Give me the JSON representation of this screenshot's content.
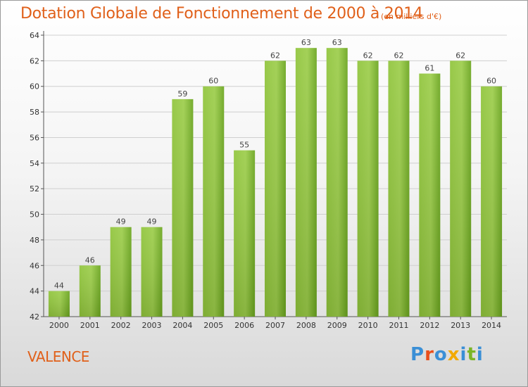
{
  "chart_data": {
    "type": "bar",
    "title": "Dotation Globale de Fonctionnement de 2000 à 2014",
    "subtitle": "(en milliers d'€)",
    "categories": [
      "2000",
      "2001",
      "2002",
      "2003",
      "2004",
      "2005",
      "2006",
      "2007",
      "2008",
      "2009",
      "2010",
      "2011",
      "2012",
      "2013",
      "2014"
    ],
    "values": [
      44,
      46,
      49,
      49,
      59,
      60,
      55,
      62,
      63,
      63,
      62,
      62,
      61,
      62,
      60
    ],
    "data_labels": [
      "44",
      "46",
      "49",
      "49",
      "59",
      "60",
      "55",
      "62",
      "63",
      "63",
      "62",
      "62",
      "61",
      "62",
      "60"
    ],
    "ylim": [
      42,
      64
    ],
    "yticks": [
      "42",
      "44",
      "46",
      "48",
      "50",
      "52",
      "54",
      "56",
      "58",
      "60",
      "62",
      "64"
    ],
    "xlabel": "",
    "ylabel": "",
    "grid": true,
    "bar_color": "#7ab526",
    "bar_color_light": "#9ccd4a"
  },
  "footer": {
    "city": "VALENCE",
    "logo": "Proxiti"
  },
  "colors": {
    "title": "#e0601a",
    "logo": "#3a8fd6"
  }
}
